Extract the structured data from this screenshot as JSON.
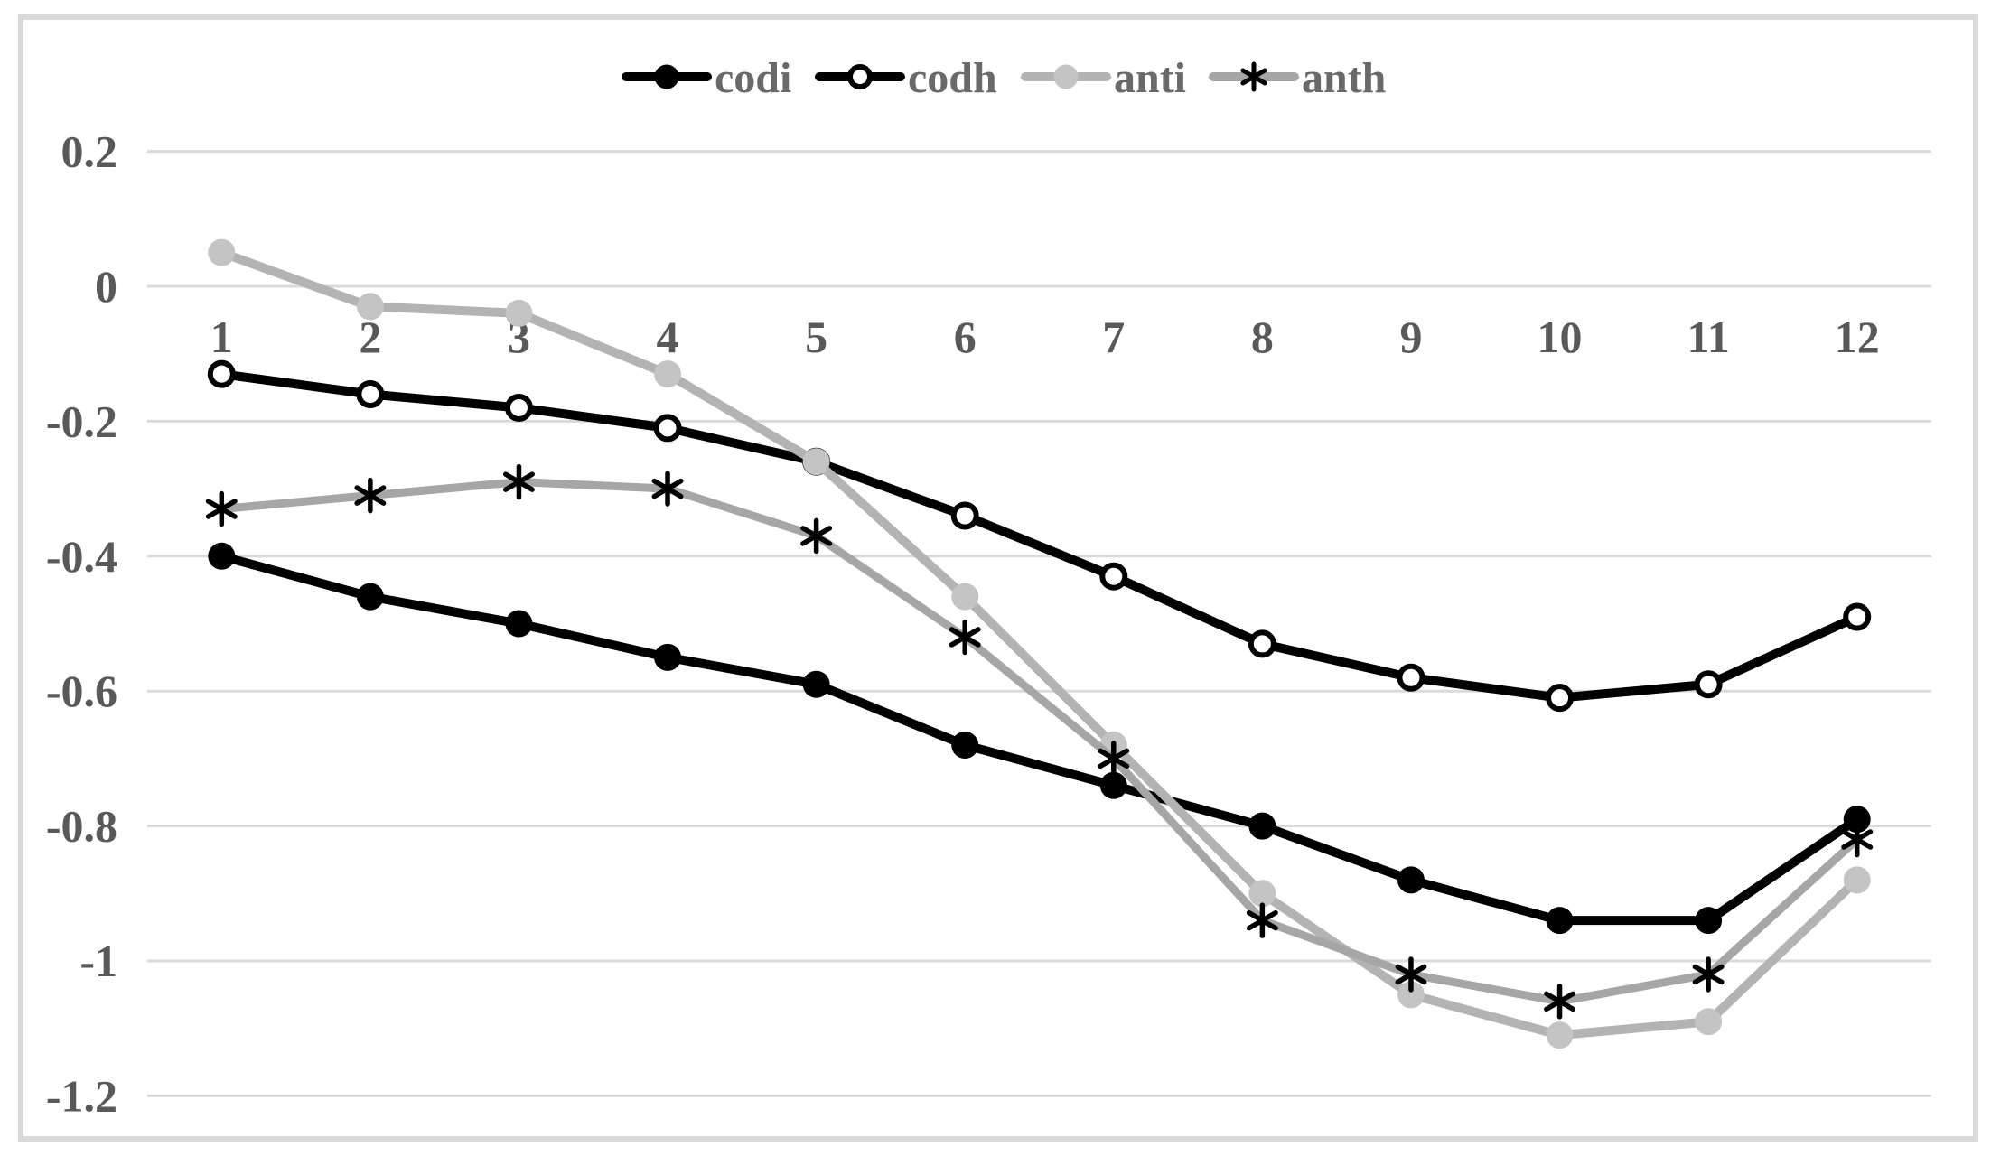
{
  "chart_data": {
    "type": "line",
    "title": "",
    "xlabel": "",
    "ylabel": "",
    "categories": [
      "1",
      "2",
      "3",
      "4",
      "5",
      "6",
      "7",
      "8",
      "9",
      "10",
      "11",
      "12"
    ],
    "series": [
      {
        "name": "codi",
        "line_color": "#000000",
        "marker": "filled-circle",
        "marker_fill": "#000000",
        "values": [
          -0.4,
          -0.46,
          -0.5,
          -0.55,
          -0.59,
          -0.68,
          -0.74,
          -0.8,
          -0.88,
          -0.94,
          -0.94,
          -0.79
        ]
      },
      {
        "name": "codh",
        "line_color": "#000000",
        "marker": "open-circle",
        "marker_fill": "#ffffff",
        "marker_stroke": "#000000",
        "values": [
          -0.13,
          -0.16,
          -0.18,
          -0.21,
          -0.26,
          -0.34,
          -0.43,
          -0.53,
          -0.58,
          -0.61,
          -0.59,
          -0.49
        ]
      },
      {
        "name": "anti",
        "line_color": "#b3b3b3",
        "marker": "filled-circle",
        "marker_fill": "#c4c4c4",
        "values": [
          0.05,
          -0.03,
          -0.04,
          -0.13,
          -0.26,
          -0.46,
          -0.68,
          -0.9,
          -1.05,
          -1.11,
          -1.09,
          -0.88
        ]
      },
      {
        "name": "anth",
        "line_color": "#a6a6a6",
        "marker": "asterisk",
        "marker_stroke": "#000000",
        "values": [
          -0.33,
          -0.31,
          -0.29,
          -0.3,
          -0.37,
          -0.52,
          -0.7,
          -0.94,
          -1.02,
          -1.06,
          -1.02,
          -0.82
        ]
      }
    ],
    "y_ticks": [
      {
        "value": 0.2,
        "label": "0.2"
      },
      {
        "value": 0.0,
        "label": "0"
      },
      {
        "value": -0.2,
        "label": "-0.2"
      },
      {
        "value": -0.4,
        "label": "-0.4"
      },
      {
        "value": -0.6,
        "label": "-0.6"
      },
      {
        "value": -0.8,
        "label": "-0.8"
      },
      {
        "value": -1.0,
        "label": "-1"
      },
      {
        "value": -1.2,
        "label": "-1.2"
      }
    ],
    "ylim": [
      -1.2,
      0.2
    ],
    "grid": "horizontal-only",
    "legend_position": "top",
    "style": {
      "grid_color": "#dadada",
      "frame_color": "#d9d9d9",
      "tick_label_color": "#595959",
      "legend_text_color": "#696969",
      "background": "#ffffff"
    }
  }
}
